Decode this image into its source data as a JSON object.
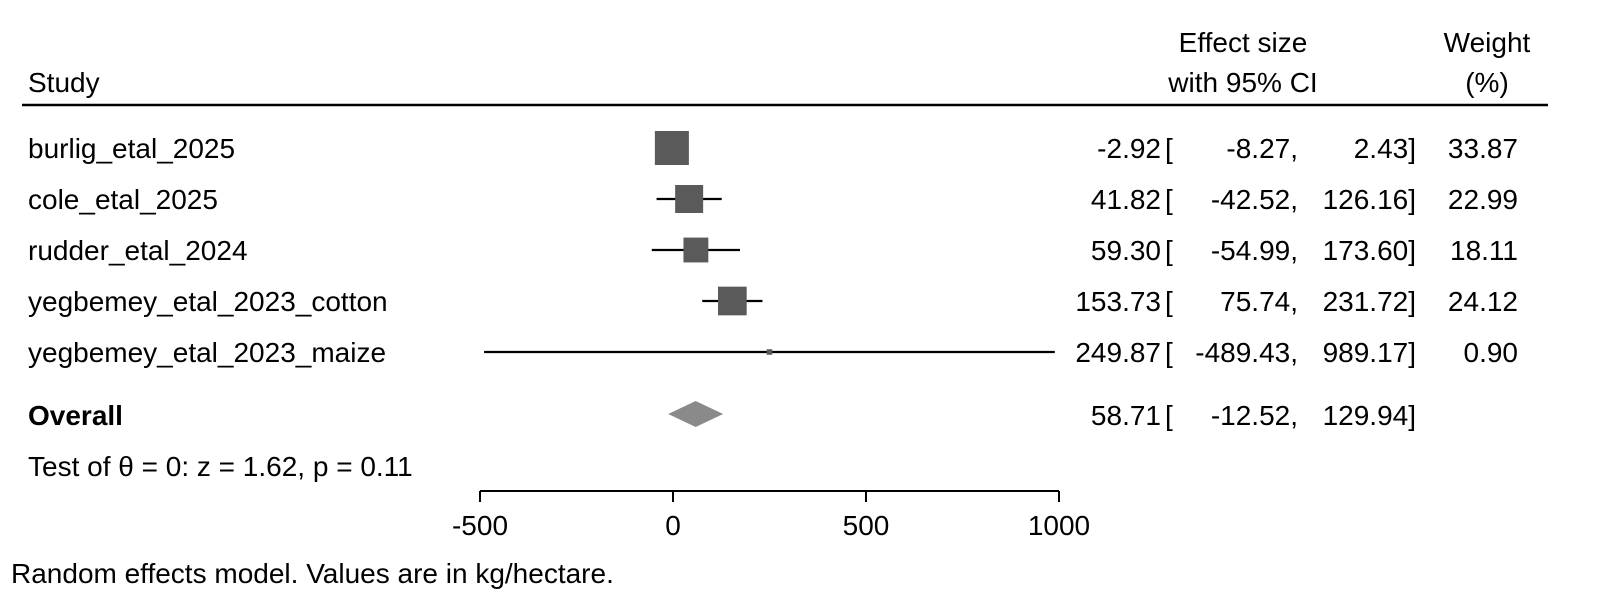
{
  "chart_data": {
    "type": "forest",
    "columns": {
      "study": "Study",
      "effect": [
        "Effect size",
        "with 95% CI"
      ],
      "weight": [
        "Weight",
        "(%)"
      ]
    },
    "studies": [
      {
        "name": "burlig_etal_2025",
        "es": -2.92,
        "lo": -8.27,
        "hi": 2.43,
        "weight": 33.87,
        "es_label": "-2.92",
        "lo_label": "-8.27,",
        "hi_label": "2.43]",
        "weight_label": "33.87"
      },
      {
        "name": "cole_etal_2025",
        "es": 41.82,
        "lo": -42.52,
        "hi": 126.16,
        "weight": 22.99,
        "es_label": "41.82",
        "lo_label": "-42.52,",
        "hi_label": "126.16]",
        "weight_label": "22.99"
      },
      {
        "name": "rudder_etal_2024",
        "es": 59.3,
        "lo": -54.99,
        "hi": 173.6,
        "weight": 18.11,
        "es_label": "59.30",
        "lo_label": "-54.99,",
        "hi_label": "173.60]",
        "weight_label": "18.11"
      },
      {
        "name": "yegbemey_etal_2023_cotton",
        "es": 153.73,
        "lo": 75.74,
        "hi": 231.72,
        "weight": 24.12,
        "es_label": "153.73",
        "lo_label": "75.74,",
        "hi_label": "231.72]",
        "weight_label": "24.12"
      },
      {
        "name": "yegbemey_etal_2023_maize",
        "es": 249.87,
        "lo": -489.43,
        "hi": 989.17,
        "weight": 0.9,
        "es_label": "249.87",
        "lo_label": "-489.43,",
        "hi_label": "989.17]",
        "weight_label": "0.90"
      }
    ],
    "overall": {
      "name": "Overall",
      "es": 58.71,
      "lo": -12.52,
      "hi": 129.94,
      "es_label": "58.71",
      "lo_label": "-12.52,",
      "hi_label": "129.94]"
    },
    "test_text": "Test of θ = 0: z = 1.62, p = 0.11",
    "xlim": [
      -500,
      1000
    ],
    "xticks": [
      -500,
      0,
      500,
      1000
    ],
    "note": "Random effects model. Values are in kg/hectare.",
    "colors": {
      "box": "#5a5a5a",
      "diamond": "#8a8a8a",
      "line": "#000000"
    }
  }
}
